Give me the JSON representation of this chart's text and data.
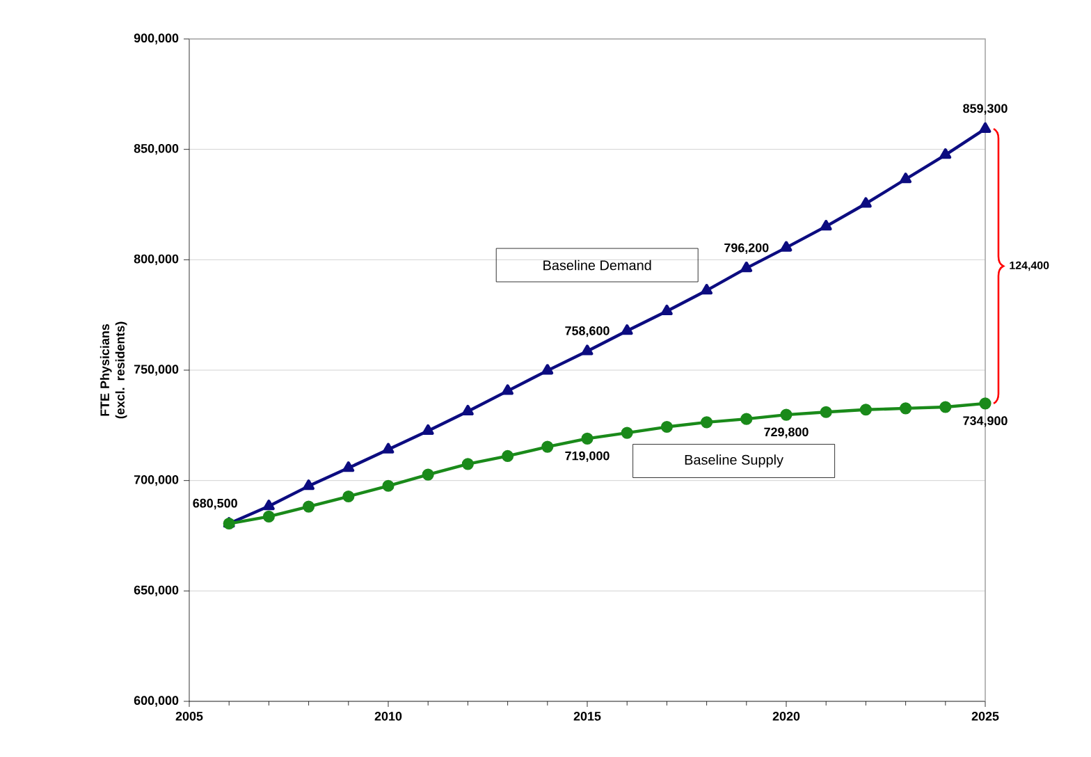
{
  "chart_data": {
    "type": "line",
    "ylabel": "FTE Physicians (excl. residents)",
    "x": [
      2006,
      2007,
      2008,
      2009,
      2010,
      2011,
      2012,
      2013,
      2014,
      2015,
      2016,
      2017,
      2018,
      2019,
      2020,
      2021,
      2022,
      2023,
      2024,
      2025
    ],
    "series": [
      {
        "name": "Baseline Demand",
        "color": "#0c0c80",
        "marker": "triangle",
        "values": [
          680500,
          688400,
          697500,
          705700,
          714100,
          722500,
          731300,
          740600,
          749800,
          758600,
          767800,
          776700,
          786100,
          796200,
          805500,
          815100,
          825400,
          836500,
          847500,
          859300
        ]
      },
      {
        "name": "Baseline Supply",
        "color": "#1a8a1a",
        "marker": "circle",
        "values": [
          680500,
          683700,
          688200,
          692800,
          697600,
          702700,
          707500,
          711100,
          715300,
          719000,
          721600,
          724300,
          726400,
          727900,
          729800,
          731000,
          732100,
          732700,
          733300,
          734900
        ]
      }
    ],
    "xlim": [
      2005,
      2025
    ],
    "xticks": [
      2005,
      2010,
      2015,
      2020,
      2025
    ],
    "ylim": [
      600000,
      900000
    ],
    "yticks": [
      {
        "value": 600000,
        "label": "600,000"
      },
      {
        "value": 650000,
        "label": "650,000"
      },
      {
        "value": 700000,
        "label": "700,000"
      },
      {
        "value": 750000,
        "label": "750,000"
      },
      {
        "value": 800000,
        "label": "800,000"
      },
      {
        "value": 850000,
        "label": "850,000"
      },
      {
        "value": 900000,
        "label": "900,000"
      }
    ],
    "grid": "y",
    "line_style": "solid",
    "annotations": [
      {
        "text": "680,500",
        "x": 2006,
        "y": 680500
      },
      {
        "text": "758,600",
        "x": 2015,
        "y": 758600
      },
      {
        "text": "796,200",
        "x": 2019,
        "y": 796200
      },
      {
        "text": "859,300",
        "x": 2025,
        "y": 859300
      },
      {
        "text": "719,000",
        "x": 2015,
        "y": 719000
      },
      {
        "text": "729,800",
        "x": 2020,
        "y": 729800
      },
      {
        "text": "734,900",
        "x": 2025,
        "y": 734900
      },
      "124,400"
    ]
  }
}
